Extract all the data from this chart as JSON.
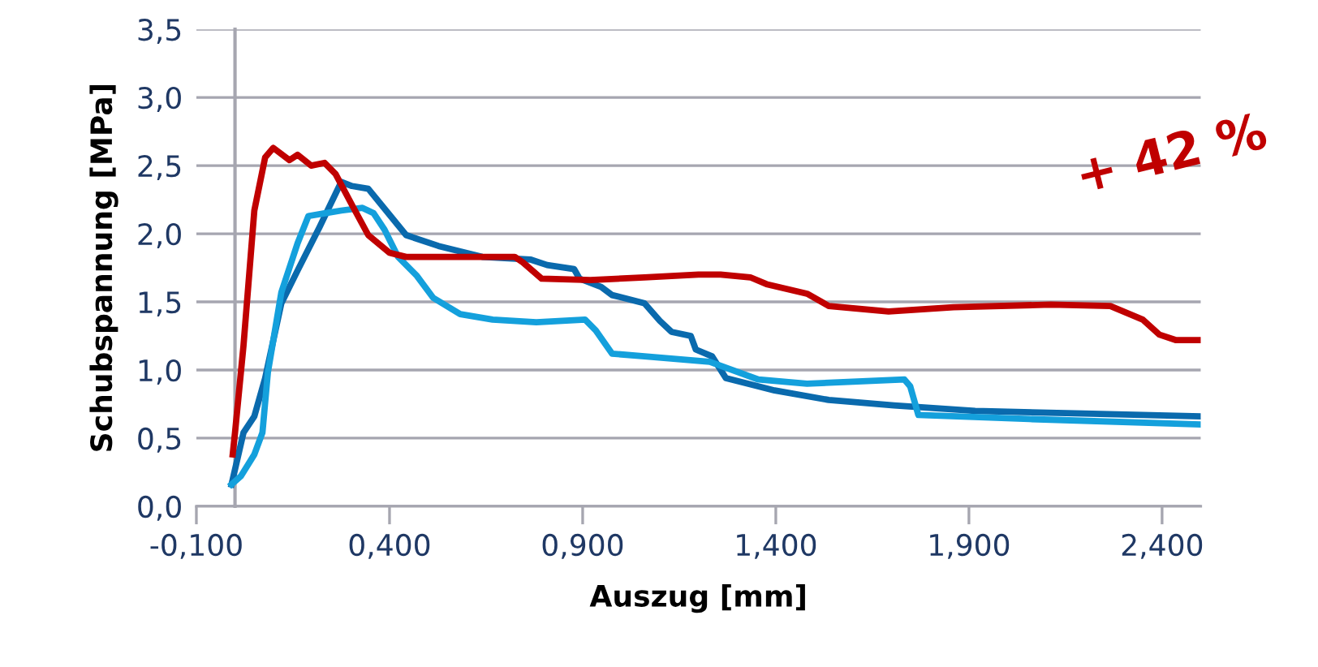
{
  "chart_data": {
    "type": "line",
    "xlabel": "Auszug [mm]",
    "ylabel": "Schubspannung [MPa]",
    "annotations": [
      "+ 42 %"
    ],
    "xlim": [
      -0.1,
      2.5
    ],
    "ylim": [
      0,
      3.5
    ],
    "xticks": [
      {
        "value": -0.1,
        "label": "-0,100"
      },
      {
        "value": 0.4,
        "label": "0,400"
      },
      {
        "value": 0.9,
        "label": "0,900"
      },
      {
        "value": 1.4,
        "label": "1,400"
      },
      {
        "value": 1.9,
        "label": "1,900"
      },
      {
        "value": 2.4,
        "label": "2,400"
      }
    ],
    "yticks": [
      {
        "value": 0,
        "label": "0,0"
      },
      {
        "value": 0.5,
        "label": "0,5"
      },
      {
        "value": 1,
        "label": "1,0"
      },
      {
        "value": 1.5,
        "label": "1,5"
      },
      {
        "value": 2,
        "label": "2,0"
      },
      {
        "value": 2.5,
        "label": "2,5"
      },
      {
        "value": 3,
        "label": "3,0"
      },
      {
        "value": 3.5,
        "label": "3,5"
      }
    ],
    "grid": "y",
    "legend": false,
    "marker": "none",
    "line_style": "solid",
    "series": [
      {
        "color": "#0a6aad",
        "x": [
          -0.009,
          0.022,
          0.05,
          0.078,
          0.12,
          0.162,
          0.219,
          0.275,
          0.303,
          0.345,
          0.443,
          0.527,
          0.64,
          0.766,
          0.808,
          0.878,
          0.892,
          0.948,
          0.976,
          1.06,
          1.1,
          1.13,
          1.18,
          1.193,
          1.235,
          1.271,
          1.327,
          1.397,
          1.537,
          1.706,
          1.916,
          2.197,
          2.5
        ],
        "values": [
          0.16,
          0.54,
          0.66,
          0.94,
          1.49,
          1.73,
          2.05,
          2.38,
          2.35,
          2.33,
          1.99,
          1.91,
          1.83,
          1.81,
          1.77,
          1.74,
          1.67,
          1.61,
          1.55,
          1.49,
          1.36,
          1.28,
          1.25,
          1.15,
          1.1,
          0.94,
          0.9,
          0.85,
          0.78,
          0.74,
          0.7,
          0.68,
          0.66
        ]
      },
      {
        "color": "#14a0dc",
        "x": [
          -0.009,
          0.015,
          0.05,
          0.071,
          0.085,
          0.12,
          0.162,
          0.19,
          0.232,
          0.275,
          0.33,
          0.359,
          0.387,
          0.422,
          0.471,
          0.513,
          0.583,
          0.667,
          0.78,
          0.906,
          0.934,
          0.976,
          1.06,
          1.229,
          1.355,
          1.481,
          1.733,
          1.748,
          1.769,
          2.056,
          2.5
        ],
        "values": [
          0.16,
          0.22,
          0.38,
          0.54,
          0.98,
          1.57,
          1.93,
          2.13,
          2.15,
          2.17,
          2.19,
          2.15,
          2.03,
          1.83,
          1.69,
          1.53,
          1.41,
          1.37,
          1.35,
          1.37,
          1.29,
          1.12,
          1.1,
          1.06,
          0.93,
          0.9,
          0.93,
          0.88,
          0.67,
          0.64,
          0.6
        ]
      },
      {
        "color": "#c00000",
        "x": [
          -0.006,
          0.0,
          0.022,
          0.05,
          0.078,
          0.099,
          0.141,
          0.162,
          0.197,
          0.232,
          0.26,
          0.303,
          0.345,
          0.4,
          0.443,
          0.569,
          0.724,
          0.745,
          0.794,
          0.92,
          1.06,
          1.2,
          1.257,
          1.334,
          1.376,
          1.481,
          1.537,
          1.692,
          1.86,
          2.112,
          2.266,
          2.35,
          2.393,
          2.435,
          2.5
        ],
        "values": [
          0.38,
          0.54,
          1.18,
          2.17,
          2.56,
          2.63,
          2.54,
          2.58,
          2.5,
          2.52,
          2.44,
          2.21,
          1.99,
          1.86,
          1.83,
          1.83,
          1.83,
          1.79,
          1.67,
          1.66,
          1.68,
          1.7,
          1.7,
          1.68,
          1.63,
          1.56,
          1.47,
          1.43,
          1.46,
          1.48,
          1.47,
          1.37,
          1.26,
          1.22,
          1.22
        ]
      }
    ]
  }
}
